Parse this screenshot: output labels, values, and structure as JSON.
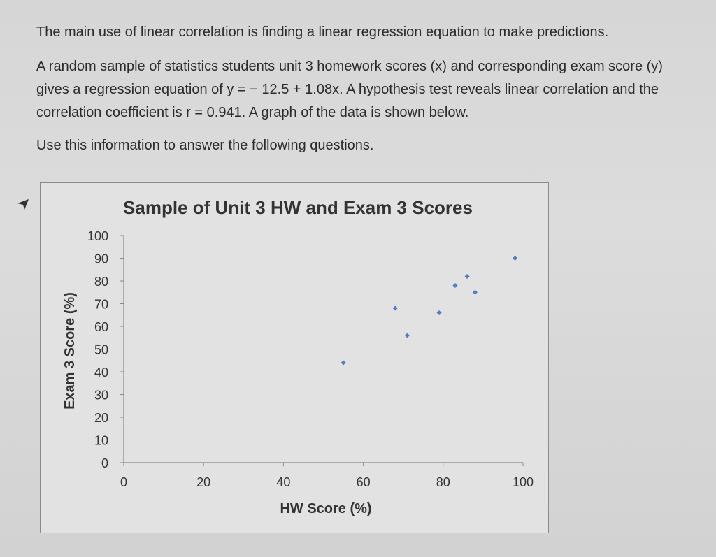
{
  "question": {
    "paragraph_1": "The main use of linear correlation is finding a linear regression equation to make predictions.",
    "paragraph_2": "A random sample of statistics students unit 3 homework scores (x) and corresponding exam score (y) gives a regression equation of y = − 12.5 + 1.08x. A hypothesis test reveals linear correlation and the correlation coefficient is r = 0.941. A graph of the data is shown below.",
    "paragraph_3": "Use this information to answer the following questions."
  },
  "cursor_icon": "arrow-cursor-icon",
  "chart_data": {
    "type": "scatter",
    "title": "Sample of Unit 3 HW and Exam 3 Scores",
    "xlabel": "HW Score (%)",
    "ylabel": "Exam 3 Score (%)",
    "xlim": [
      0,
      100
    ],
    "ylim": [
      0,
      100
    ],
    "xticks": [
      0,
      20,
      40,
      60,
      80,
      100
    ],
    "yticks": [
      0,
      10,
      20,
      30,
      40,
      50,
      60,
      70,
      80,
      90,
      100
    ],
    "series": [
      {
        "color": "#4f7fc1",
        "points": [
          {
            "x": 55,
            "y": 44
          },
          {
            "x": 68,
            "y": 68
          },
          {
            "x": 71,
            "y": 56
          },
          {
            "x": 79,
            "y": 66
          },
          {
            "x": 83,
            "y": 78
          },
          {
            "x": 86,
            "y": 82
          },
          {
            "x": 88,
            "y": 75
          },
          {
            "x": 98,
            "y": 90
          }
        ]
      }
    ],
    "grid": false,
    "legend": "none"
  }
}
